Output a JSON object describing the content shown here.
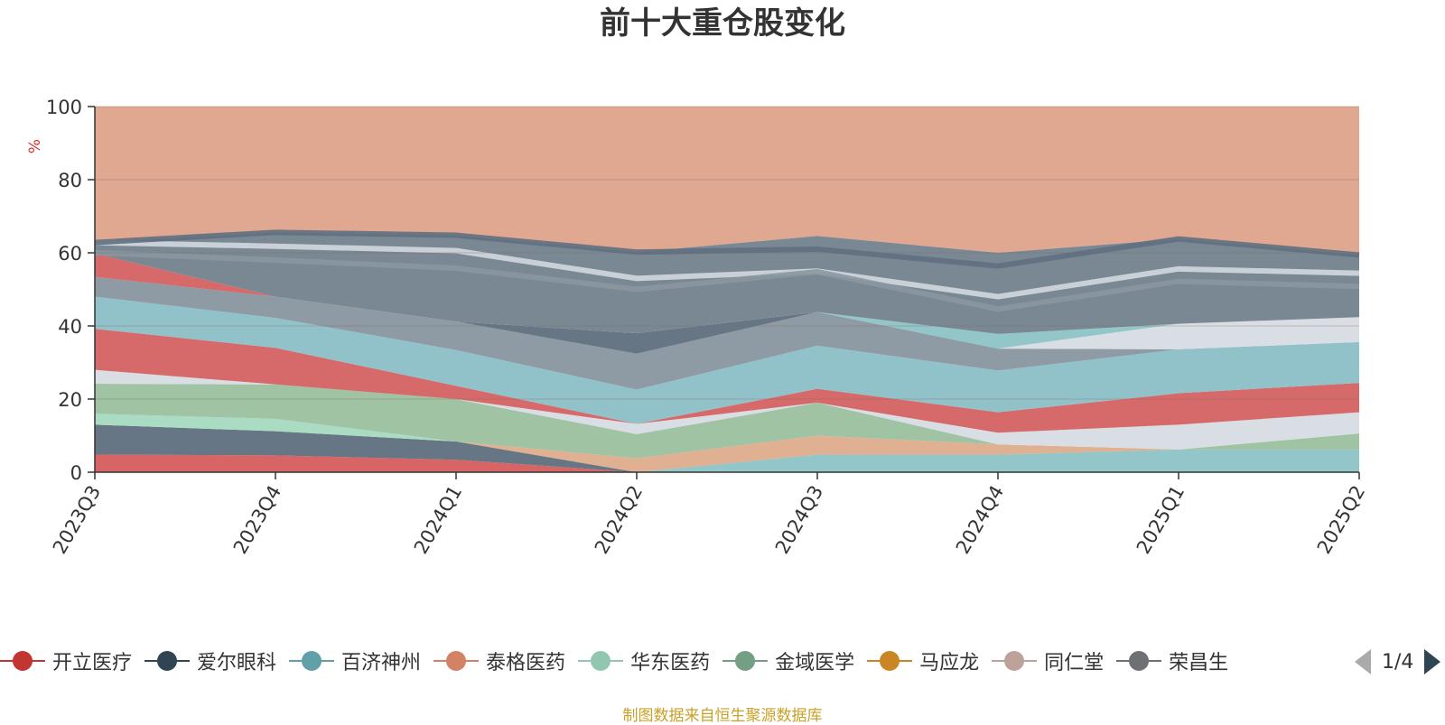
{
  "chart_data": {
    "type": "area",
    "title": "前十大重仓股变化",
    "ylabel": "%",
    "ylim": [
      0,
      100
    ],
    "yticks": [
      0,
      20,
      40,
      60,
      80,
      100
    ],
    "categories": [
      "2023Q3",
      "2023Q4",
      "2024Q1",
      "2024Q2",
      "2024Q3",
      "2024Q4",
      "2025Q1",
      "2025Q2"
    ],
    "layer_colors": [
      "#d14a4a",
      "#4c5e6e",
      "#9ad6b8",
      "#7fbcc0",
      "#d9a27f",
      "#8fb894",
      "#d2d8df",
      "#cf5050",
      "#7fb7c0",
      "#7a8a94",
      "#d2d8df",
      "#cf5050",
      "#4c5e6e",
      "#7fbcc0",
      "#d9896a"
    ],
    "bands": [
      [
        4.8,
        4.6,
        3.4,
        0,
        0,
        0,
        0,
        0
      ],
      [
        8.2,
        6.6,
        5.0,
        0,
        0,
        0,
        0,
        0
      ],
      [
        3.0,
        3.4,
        0,
        0,
        0,
        0,
        0,
        0
      ],
      [
        0,
        0,
        0,
        0,
        4.8,
        4.8,
        6.2,
        6.2
      ],
      [
        0,
        0,
        0,
        3.8,
        5.2,
        2.8,
        0,
        0
      ],
      [
        8.2,
        9.4,
        11.6,
        6.6,
        9.0,
        0,
        0,
        4.4
      ],
      [
        3.8,
        0,
        0,
        2.8,
        0,
        3.2,
        6.8,
        5.8
      ],
      [
        11.2,
        10.0,
        3.6,
        0,
        3.8,
        5.6,
        8.6,
        8.0
      ],
      [
        8.8,
        8.2,
        9.8,
        9.4,
        11.8,
        11.4,
        12.0,
        11.2
      ],
      [
        5.4,
        5.8,
        7.8,
        9.8,
        9.2,
        6.0,
        0,
        0
      ],
      [
        0,
        0,
        0,
        0,
        0,
        0,
        7.0,
        6.8
      ],
      [
        6.4,
        0,
        0,
        0,
        0,
        0,
        0,
        0
      ],
      [
        0,
        0,
        0,
        5.6,
        0,
        0,
        0,
        0
      ],
      [
        0,
        0,
        0,
        0,
        0,
        4.0,
        0,
        0
      ],
      [
        0,
        0,
        0,
        0,
        0,
        0,
        0,
        0
      ]
    ],
    "top_boundary": [
      62.8,
      65.6,
      64.8,
      60.2,
      64.6,
      60.0,
      63.8,
      59.4
    ],
    "inner_boundaries": [
      {
        "color": "#d2d8df",
        "values": [
          62.8,
          61.8,
          60.6,
          53.0,
          55.0,
          48.0,
          55.6,
          54.4
        ]
      },
      {
        "color": "#8a979f",
        "values": [
          60.0,
          58.0,
          55.8,
          50.0,
          54.8,
          44.6,
          52.2,
          50.8
        ]
      },
      {
        "color": "#5f7080",
        "values": [
          62.8,
          65.6,
          64.8,
          60.2,
          61.0,
          56.4,
          63.8,
          59.4
        ]
      }
    ],
    "top_fill": "#e0a791"
  },
  "legend": {
    "items": [
      {
        "label": "开立医疗",
        "color": "#c23531"
      },
      {
        "label": "爱尔眼科",
        "color": "#2f4554"
      },
      {
        "label": "百济神州",
        "color": "#61a0a8"
      },
      {
        "label": "泰格医药",
        "color": "#d48265"
      },
      {
        "label": "华东医药",
        "color": "#91c7ae"
      },
      {
        "label": "金域医学",
        "color": "#749f83"
      },
      {
        "label": "马应龙",
        "color": "#ca8622"
      },
      {
        "label": "同仁堂",
        "color": "#bda29a"
      },
      {
        "label": "荣昌生",
        "color": "#6e7074"
      }
    ],
    "page": "1/4"
  },
  "footer": {
    "source": "制图数据来自恒生聚源数据库"
  }
}
